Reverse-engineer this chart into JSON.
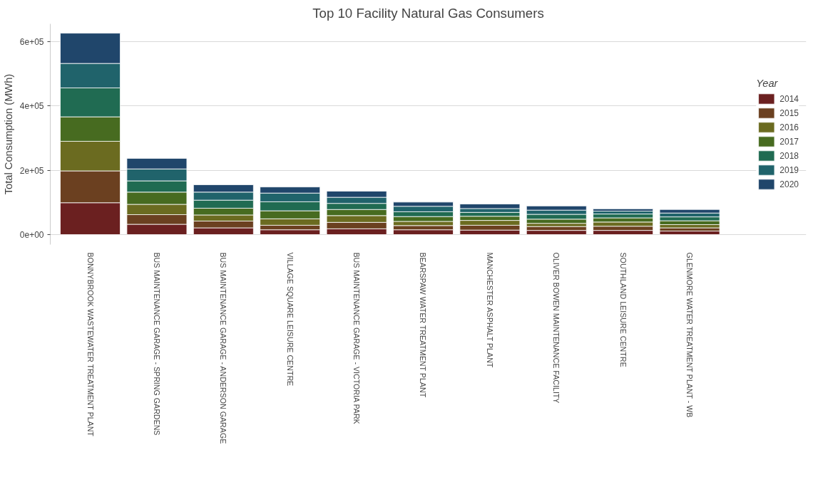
{
  "chart_data": {
    "type": "bar",
    "stacked": true,
    "title": "Top 10 Facility Natural Gas Consumers",
    "ylabel": "Total Consumption (MWh)",
    "legend_title": "Year",
    "legend": "right",
    "grid": "y",
    "categories": [
      "BONNYBROOK WASTEWATER TREATMENT PLANT",
      "BUS MAINTENANCE GARAGE - SPRING GARDENS",
      "BUS MAINTENANCE GARAGE - ANDERSON GARAGE",
      "VILLAGE SQUARE LEISURE CENTRE",
      "BUS MAINTENANCE GARAGE - VICTORIA PARK",
      "BEARSPAW WATER TREATMENT PLANT",
      "MANCHESTER ASPHALT PLANT",
      "OLIVER BOWEN MAINTENANCE FACILITY",
      "SOUTHLAND LEISURE CENTRE",
      "GLENMORE WATER TREATMENT PLANT - WB"
    ],
    "ylim": [
      -31000,
      655000
    ],
    "yticks": [
      {
        "value": 0,
        "label": "0e+00"
      },
      {
        "value": 200000,
        "label": "2e+05"
      },
      {
        "value": 400000,
        "label": "4e+05"
      },
      {
        "value": 600000,
        "label": "6e+05"
      }
    ],
    "series": [
      {
        "name": "2014",
        "color": "#6b2020",
        "values": [
          99000,
          32000,
          21000,
          15000,
          18000,
          15000,
          14000,
          13000,
          13000,
          11000
        ]
      },
      {
        "name": "2015",
        "color": "#6b4020",
        "values": [
          99000,
          30000,
          21000,
          14000,
          20000,
          13000,
          15000,
          12000,
          13000,
          10000
        ]
      },
      {
        "name": "2016",
        "color": "#6b6b20",
        "values": [
          92000,
          32000,
          19000,
          20000,
          21000,
          13000,
          15000,
          10000,
          13000,
          10000
        ]
      },
      {
        "name": "2017",
        "color": "#476b20",
        "values": [
          76000,
          38000,
          21000,
          25000,
          19000,
          15000,
          13000,
          13000,
          13000,
          12000
        ]
      },
      {
        "name": "2018",
        "color": "#206b52",
        "values": [
          90000,
          35000,
          25000,
          28000,
          19000,
          15000,
          12000,
          15000,
          12000,
          12000
        ]
      },
      {
        "name": "2019",
        "color": "#20636b",
        "values": [
          76000,
          37000,
          25000,
          27000,
          19000,
          17000,
          12000,
          13000,
          9000,
          12000
        ]
      },
      {
        "name": "2020",
        "color": "#20466b",
        "values": [
          94000,
          33000,
          23000,
          19000,
          19000,
          13000,
          14000,
          13000,
          7000,
          11000
        ]
      }
    ]
  }
}
